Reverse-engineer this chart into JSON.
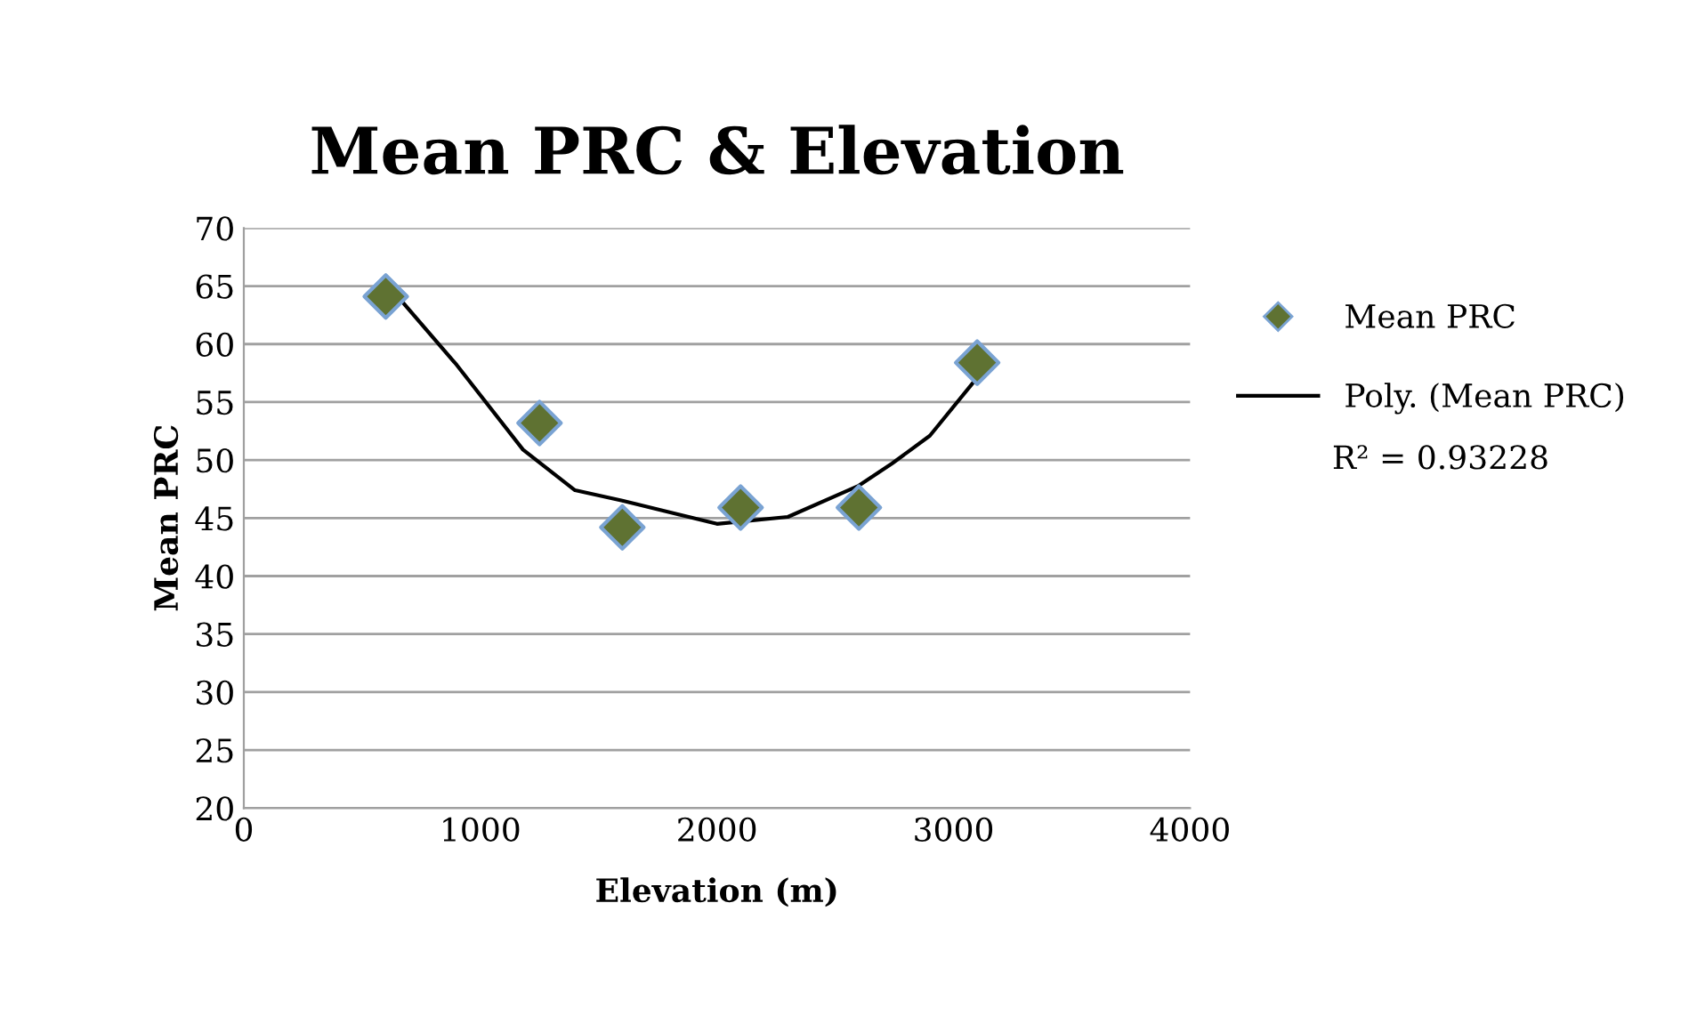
{
  "chart_data": {
    "type": "scatter",
    "title": "Mean PRC & Elevation",
    "xlabel": "Elevation (m)",
    "ylabel": "Mean PRC",
    "series": [
      {
        "name": "Mean PRC",
        "color": "#5f7232",
        "marker": "diamond",
        "x": [
          600,
          1250,
          1600,
          2100,
          2600,
          3100
        ],
        "values": [
          64.1,
          53.2,
          44.2,
          45.9,
          45.9,
          58.4
        ]
      },
      {
        "name": "Poly. (Mean PRC)",
        "type": "line",
        "color": "#000000",
        "marker": "none",
        "line_style": "solid",
        "x": [
          600,
          900,
          1180,
          1400,
          1600,
          2000,
          2300,
          2600,
          2740,
          2900,
          3100
        ],
        "values": [
          65.3,
          58.2,
          50.9,
          47.4,
          46.5,
          44.5,
          45.1,
          47.8,
          49.7,
          52.1,
          57.1
        ]
      }
    ],
    "annotations": [
      "R² = 0.93228"
    ],
    "xlim": [
      0,
      4000
    ],
    "xticks": [
      0,
      1000,
      2000,
      3000,
      4000
    ],
    "ylim": [
      20,
      70
    ],
    "yticks": [
      20,
      25,
      30,
      35,
      40,
      45,
      50,
      55,
      60,
      65,
      70
    ],
    "grid": "y",
    "legend": "right"
  }
}
